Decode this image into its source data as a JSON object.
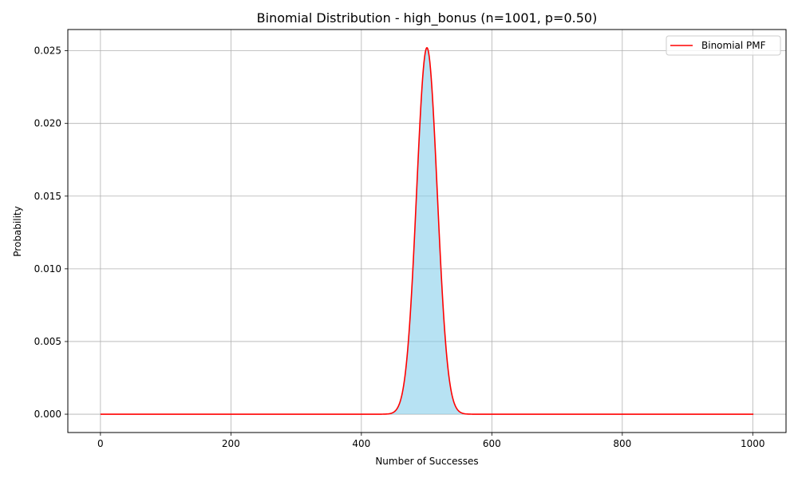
{
  "colors": {
    "pmf_line": "#ff0000",
    "fill": "#87ceeb",
    "grid": "#b0b0b0",
    "axes": "#000000",
    "background": "#ffffff"
  },
  "chart_data": {
    "type": "area",
    "title": "Binomial Distribution - high_bonus (n=1001, p=0.50)",
    "xlabel": "Number of Successes",
    "ylabel": "Probability",
    "n": 1001,
    "p": 0.5,
    "xlim": [
      -50,
      1051
    ],
    "ylim": [
      -0.00126,
      0.02646
    ],
    "xticks": [
      0,
      200,
      400,
      600,
      800,
      1000
    ],
    "xtick_labels": [
      "0",
      "200",
      "400",
      "600",
      "800",
      "1000"
    ],
    "yticks": [
      0.0,
      0.005,
      0.01,
      0.015,
      0.02,
      0.025
    ],
    "ytick_labels": [
      "0.000",
      "0.005",
      "0.010",
      "0.015",
      "0.020",
      "0.025"
    ],
    "grid": true,
    "legend_position": "top-right",
    "series": [
      {
        "name": "Binomial PMF",
        "kind": "line",
        "x_range": [
          0,
          1001
        ],
        "peak": 0.0252
      }
    ]
  }
}
